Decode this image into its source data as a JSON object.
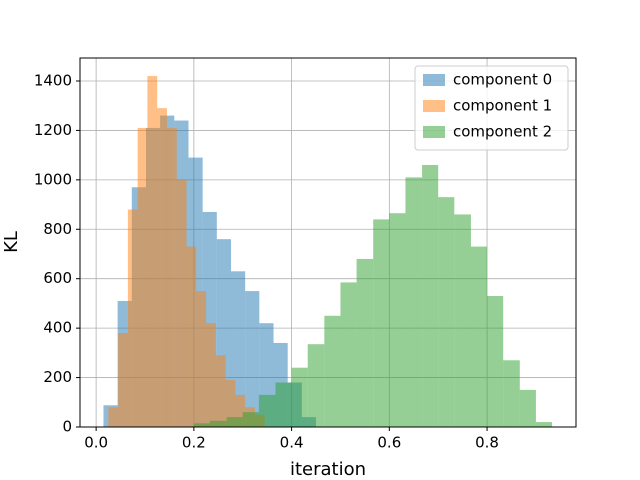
{
  "chart_data": {
    "type": "histogram",
    "x_label": "iteration",
    "y_label": "KL",
    "xlim": [
      -0.033,
      0.982
    ],
    "ylim": [
      0,
      1493
    ],
    "xticks": [
      {
        "value": 0,
        "label": "0.0"
      },
      {
        "value": 0.2,
        "label": "0.2"
      },
      {
        "value": 0.4,
        "label": "0.4"
      },
      {
        "value": 0.6,
        "label": "0.6"
      },
      {
        "value": 0.8,
        "label": "0.8"
      }
    ],
    "yticks": [
      0,
      200,
      400,
      600,
      800,
      1000,
      1200,
      1400
    ],
    "grid": true,
    "legend": "upper right",
    "opacity": 0.5,
    "series": [
      {
        "name": "component 0",
        "color": "#1f77b4",
        "bins": [
          0.015,
          0.044,
          0.073,
          0.102,
          0.131,
          0.16,
          0.189,
          0.218,
          0.247,
          0.276,
          0.305,
          0.334,
          0.363,
          0.392,
          0.421,
          0.45
        ],
        "values": [
          88,
          510,
          970,
          1210,
          1260,
          1240,
          1090,
          870,
          760,
          630,
          550,
          420,
          340,
          180,
          40
        ]
      },
      {
        "name": "component 1",
        "color": "#ff7f0e",
        "bins": [
          0.025,
          0.045,
          0.065,
          0.085,
          0.105,
          0.125,
          0.145,
          0.165,
          0.185,
          0.205,
          0.225,
          0.245,
          0.265,
          0.285,
          0.305,
          0.325,
          0.345
        ],
        "values": [
          80,
          380,
          880,
          1210,
          1420,
          1290,
          1210,
          1000,
          730,
          550,
          420,
          290,
          190,
          130,
          80,
          50
        ]
      },
      {
        "name": "component 2",
        "color": "#2ca02c",
        "bins": [
          0.2,
          0.233,
          0.267,
          0.3,
          0.333,
          0.367,
          0.4,
          0.433,
          0.467,
          0.5,
          0.533,
          0.567,
          0.6,
          0.633,
          0.667,
          0.7,
          0.733,
          0.767,
          0.8,
          0.833,
          0.867,
          0.9,
          0.933
        ],
        "values": [
          15,
          25,
          40,
          60,
          130,
          180,
          240,
          335,
          450,
          585,
          680,
          840,
          865,
          1010,
          1060,
          930,
          860,
          730,
          530,
          270,
          150,
          20
        ]
      }
    ]
  }
}
